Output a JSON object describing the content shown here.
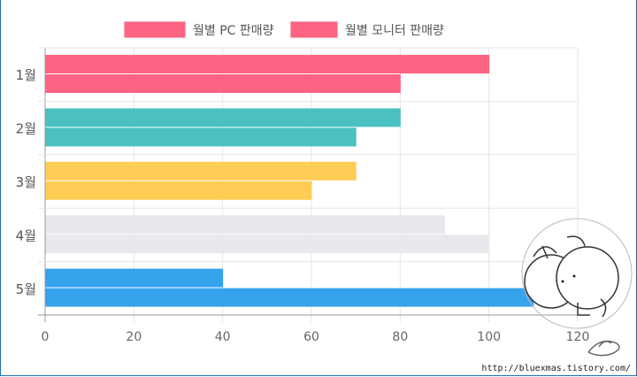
{
  "chart_data": {
    "type": "bar",
    "orientation": "horizontal",
    "categories": [
      "1월",
      "2월",
      "3월",
      "4월",
      "5월"
    ],
    "series": [
      {
        "name": "월별 PC 판매량",
        "values": [
          100,
          80,
          70,
          90,
          40
        ]
      },
      {
        "name": "월별 모니터 판매량",
        "values": [
          80,
          70,
          60,
          100,
          110
        ]
      }
    ],
    "bar_colors": [
      "#ff6384",
      "#4bc0c0",
      "#ffcd56",
      "#e7e9ed",
      "#36a2eb"
    ],
    "legend_colors": [
      "#ff6384",
      "#ff6384"
    ],
    "xlim": [
      0,
      120
    ],
    "x_ticks": [
      0,
      20,
      40,
      60,
      80,
      100,
      120
    ],
    "grid": true,
    "legend_position": "top"
  },
  "watermark": {
    "url": "http://bluexmas.tistory.com/"
  }
}
